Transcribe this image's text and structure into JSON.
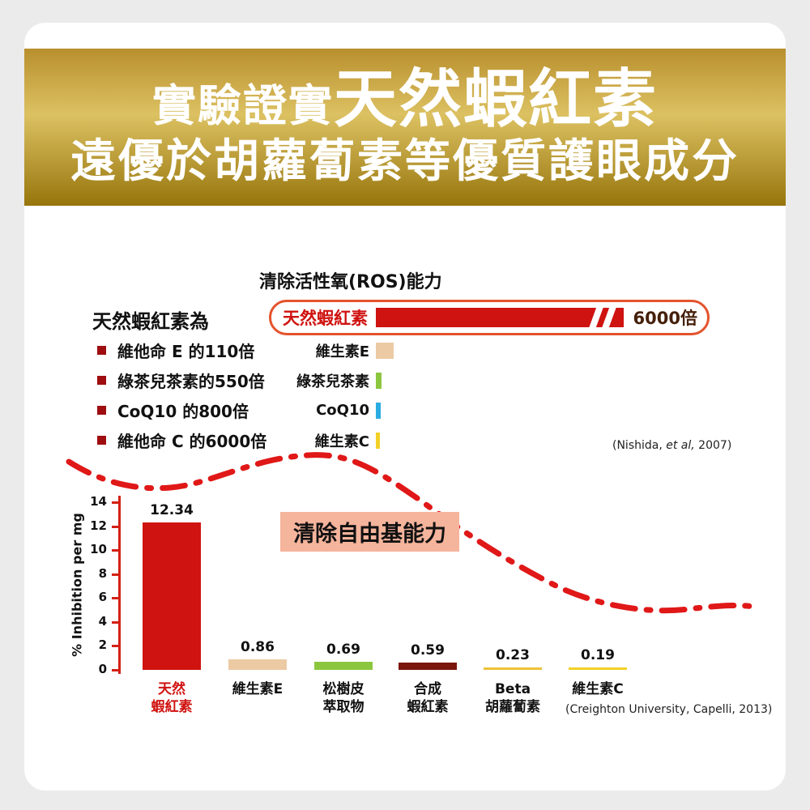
{
  "colors": {
    "page_bg": "#ebebeb",
    "card_bg": "#ffffff",
    "gold_top": "#b98f2e",
    "gold_mid": "#dcc162",
    "gold_bottom": "#97750c",
    "red": "#cf1310",
    "bullet_red": "#9e0d10",
    "orange_border": "#e4532c",
    "salmon": "#f5b49c",
    "axis_red": "#d42015",
    "value_brown": "#45200b"
  },
  "banner": {
    "lead": "實驗證實",
    "headline": "天然蝦紅素",
    "subheadline": "遠優於胡蘿蔔素等優質護眼成分"
  },
  "ros": {
    "title": "清除活性氧(ROS)能力",
    "intro": "天然蝦紅素為",
    "bullets": [
      "維他命 E 的110倍",
      "綠茶兒茶素的550倍",
      "CoQ10 的800倍",
      "維他命 C 的6000倍"
    ],
    "hero_label": "天然蝦紅素",
    "hero_value": "6000倍",
    "rows": [
      {
        "label": "維生素E",
        "color": "#eccaa3",
        "width": 22
      },
      {
        "label": "綠茶兒茶素",
        "color": "#8cc63f",
        "width": 7
      },
      {
        "label": "CoQ10",
        "color": "#2aabe2",
        "width": 6
      },
      {
        "label": "維生素C",
        "color": "#f2d026",
        "width": 5
      }
    ],
    "citation": {
      "pre": "(Nishida, ",
      "italic": "et al,",
      "post": " 2007)"
    }
  },
  "radical": {
    "title": "清除自由基能力",
    "ylabel": "% Inhibition per mg",
    "citation": "(Creighton University, Capelli, 2013)",
    "ymax": 14,
    "yticks": [
      0,
      2,
      4,
      6,
      8,
      10,
      12,
      14
    ],
    "bars": [
      {
        "label_lines": [
          "天然",
          "蝦紅素"
        ],
        "value": 12.34,
        "color": "#cf1310",
        "label_color": "#cf1310"
      },
      {
        "label_lines": [
          "維生素E"
        ],
        "value": 0.86,
        "color": "#eccaa3",
        "label_color": "#111111"
      },
      {
        "label_lines": [
          "松樹皮",
          "萃取物"
        ],
        "value": 0.69,
        "color": "#8cc63f",
        "label_color": "#111111"
      },
      {
        "label_lines": [
          "合成",
          "蝦紅素"
        ],
        "value": 0.59,
        "color": "#7c150c",
        "label_color": "#111111"
      },
      {
        "label_lines": [
          "Beta",
          "胡蘿蔔素"
        ],
        "value": 0.23,
        "color": "#eec23a",
        "label_color": "#111111"
      },
      {
        "label_lines": [
          "維生素C"
        ],
        "value": 0.19,
        "color": "#f2d026",
        "label_color": "#111111"
      }
    ]
  },
  "chart_data": [
    {
      "type": "bar",
      "orientation": "horizontal",
      "title": "清除活性氧(ROS)能力",
      "subject": "天然蝦紅素",
      "subject_value_label": "6000倍",
      "comparisons": [
        {
          "label": "維生素E",
          "astaxanthin_multiple": 110
        },
        {
          "label": "綠茶兒茶素",
          "astaxanthin_multiple": 550
        },
        {
          "label": "CoQ10",
          "astaxanthin_multiple": 800
        },
        {
          "label": "維生素C",
          "astaxanthin_multiple": 6000
        }
      ],
      "citation": "(Nishida, et al, 2007)"
    },
    {
      "type": "bar",
      "title": "清除自由基能力",
      "categories": [
        "天然蝦紅素",
        "維生素E",
        "松樹皮萃取物",
        "合成蝦紅素",
        "Beta胡蘿蔔素",
        "維生素C"
      ],
      "values": [
        12.34,
        0.86,
        0.69,
        0.59,
        0.23,
        0.19
      ],
      "ylabel": "% Inhibition per mg",
      "ylim": [
        0,
        14
      ],
      "yticks": [
        0,
        2,
        4,
        6,
        8,
        10,
        12,
        14
      ],
      "grid": false,
      "legend": false,
      "citation": "(Creighton University, Capelli, 2013)"
    }
  ]
}
